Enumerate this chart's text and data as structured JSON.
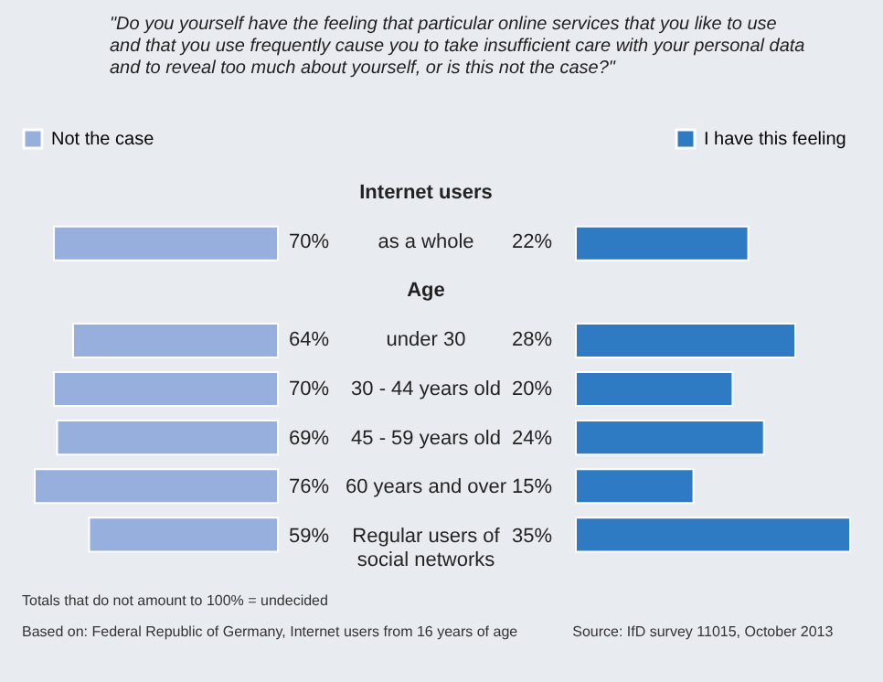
{
  "chart_data": [
    {
      "type": "bar",
      "orientation": "horizontal",
      "title": "\"Do you yourself have the feeling that particular online services that you like to use and that you use frequently cause you to take insufficient care with your personal data and to reveal too much about yourself, or is this not the case?\"",
      "categories": [
        "as a whole",
        "under 30",
        "30 - 44 years old",
        "45 - 59 years old",
        "60 years and over",
        "Regular users of social networks"
      ],
      "series": [
        {
          "name": "Not the case",
          "color": "#97afdc",
          "values": [
            70,
            64,
            70,
            69,
            76,
            59
          ],
          "value_labels": [
            "70%",
            "64%",
            "70%",
            "69%",
            "76%",
            "59%"
          ]
        }
      ],
      "legend": "top left",
      "annotations": [
        "Internet users",
        "Age",
        "Totals that do not amount to 100% = undecided",
        "Based on: Federal Republic of Germany, Internet users from 16 years of age",
        "Source: IfD survey 11015, October 2013"
      ]
    },
    {
      "type": "bar",
      "orientation": "horizontal",
      "categories": [
        null,
        null,
        null,
        null,
        null,
        null
      ],
      "series": [
        {
          "name": "I have this feeling",
          "color": "#2e7bc4",
          "values": [
            22,
            28,
            20,
            24,
            15,
            35
          ],
          "value_labels": [
            "22%",
            "28%",
            "20%",
            "24%",
            "15%",
            "35%"
          ]
        }
      ],
      "legend": "top right"
    }
  ]
}
